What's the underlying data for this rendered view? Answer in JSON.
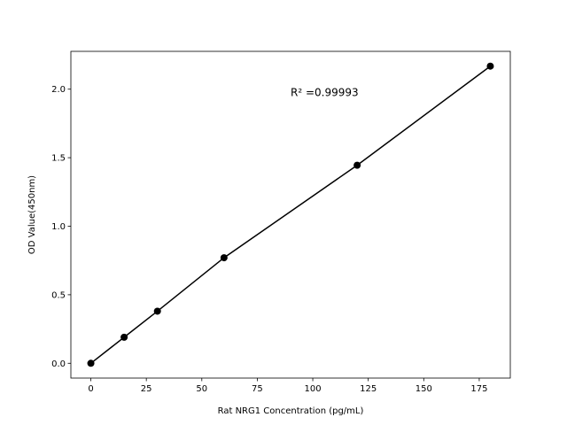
{
  "chart_data": {
    "type": "scatter",
    "title": "",
    "xlabel": "Rat NRG1 Concentration (pg/mL)",
    "ylabel": "OD Value(450nm)",
    "xlim": [
      -9,
      189
    ],
    "ylim": [
      -0.108,
      2.276
    ],
    "xticks": [
      0,
      25,
      50,
      75,
      100,
      125,
      150,
      175
    ],
    "xtick_labels": [
      "0",
      "25",
      "50",
      "75",
      "100",
      "125",
      "150",
      "175"
    ],
    "yticks": [
      0.0,
      0.5,
      1.0,
      1.5,
      2.0
    ],
    "ytick_labels": [
      "0.0",
      "0.5",
      "1.0",
      "1.5",
      "2.0"
    ],
    "grid": false,
    "series": [
      {
        "x": [
          0,
          15,
          30,
          60,
          120,
          180
        ],
        "y": [
          0.0,
          0.19,
          0.38,
          0.77,
          1.445,
          2.168
        ],
        "color": "#000000",
        "marker": "circle",
        "line": true
      }
    ],
    "annotations": [
      {
        "text": "R² =0.99993",
        "x": 90,
        "y": 1.95
      }
    ]
  }
}
